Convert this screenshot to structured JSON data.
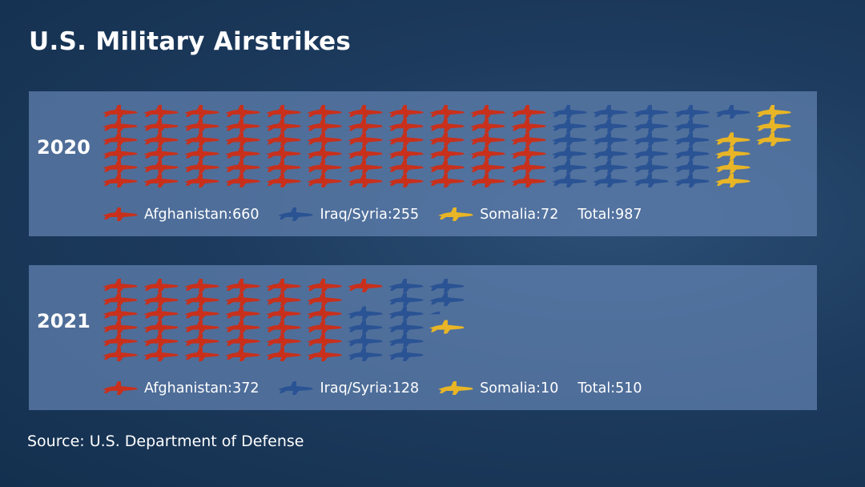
{
  "title": "U.S. Military Airstrikes",
  "source": "Source: U.S. Department of Defense",
  "colors": {
    "afghanistan": "#c8301c",
    "iraq_syria": "#2a5394",
    "somalia": "#e8b526"
  },
  "icon": "fighter-jet-icon",
  "chart_data": {
    "type": "pictograph",
    "title": "U.S. Military Airstrikes",
    "unit_note": "",
    "years": [
      {
        "year": "2020",
        "series": [
          {
            "name": "Afghanistan",
            "value": 660,
            "label": "Afghanistan:660"
          },
          {
            "name": "Iraq/Syria",
            "value": 255,
            "label": "Iraq/Syria:255"
          },
          {
            "name": "Somalia",
            "value": 72,
            "label": "Somalia:72"
          }
        ],
        "total": 987,
        "total_label": "Total:987"
      },
      {
        "year": "2021",
        "series": [
          {
            "name": "Afghanistan",
            "value": 372,
            "label": "Afghanistan:372"
          },
          {
            "name": "Iraq/Syria",
            "value": 128,
            "label": "Iraq/Syria:128"
          },
          {
            "name": "Somalia",
            "value": 10,
            "label": "Somalia:10"
          }
        ],
        "total": 510,
        "total_label": "Total:510"
      }
    ]
  }
}
